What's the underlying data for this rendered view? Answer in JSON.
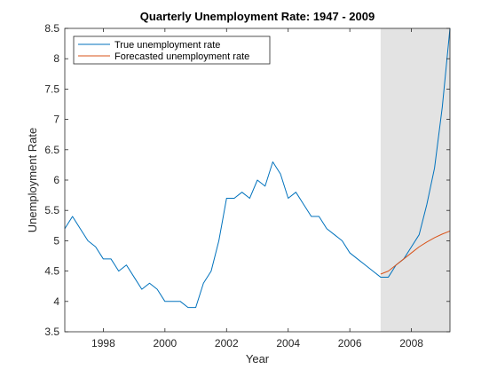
{
  "chart_data": {
    "type": "line",
    "title": "Quarterly Unemployment Rate: 1947 - 2009",
    "xlabel": "Year",
    "ylabel": "Unemployment Rate",
    "xlim": [
      1996.75,
      2009.25
    ],
    "ylim": [
      3.5,
      8.5
    ],
    "xticks": [
      1998,
      2000,
      2002,
      2004,
      2006,
      2008
    ],
    "yticks": [
      3.5,
      4,
      4.5,
      5,
      5.5,
      6,
      6.5,
      7,
      7.5,
      8,
      8.5
    ],
    "grid": false,
    "legend_position": "top-left",
    "shaded_region": {
      "x": [
        2007.0,
        2009.25
      ],
      "color": "#e3e3e3"
    },
    "series": [
      {
        "name": "True unemployment rate",
        "color": "#0072bd",
        "x": [
          1996.75,
          1997.0,
          1997.25,
          1997.5,
          1997.75,
          1998.0,
          1998.25,
          1998.5,
          1998.75,
          1999.0,
          1999.25,
          1999.5,
          1999.75,
          2000.0,
          2000.25,
          2000.5,
          2000.75,
          2001.0,
          2001.25,
          2001.5,
          2001.75,
          2002.0,
          2002.25,
          2002.5,
          2002.75,
          2003.0,
          2003.25,
          2003.5,
          2003.75,
          2004.0,
          2004.25,
          2004.5,
          2004.75,
          2005.0,
          2005.25,
          2005.5,
          2005.75,
          2006.0,
          2006.25,
          2006.5,
          2006.75,
          2007.0,
          2007.25,
          2007.5,
          2007.75,
          2008.0,
          2008.25,
          2008.5,
          2008.75,
          2009.0,
          2009.25
        ],
        "values": [
          5.2,
          5.4,
          5.2,
          5.0,
          4.9,
          4.7,
          4.7,
          4.5,
          4.6,
          4.4,
          4.2,
          4.3,
          4.2,
          4.0,
          4.0,
          4.0,
          3.9,
          3.9,
          4.3,
          4.5,
          5.0,
          5.7,
          5.7,
          5.8,
          5.7,
          6.0,
          5.9,
          6.3,
          6.1,
          5.7,
          5.8,
          5.6,
          5.4,
          5.4,
          5.2,
          5.1,
          5.0,
          4.8,
          4.7,
          4.6,
          4.5,
          4.4,
          4.4,
          4.6,
          4.7,
          4.9,
          5.1,
          5.6,
          6.2,
          7.2,
          8.5
        ]
      },
      {
        "name": "Forecasted unemployment rate",
        "color": "#d95319",
        "x": [
          2007.0,
          2007.25,
          2007.5,
          2007.75,
          2008.0,
          2008.25,
          2008.5,
          2008.75,
          2009.0,
          2009.25
        ],
        "values": [
          4.45,
          4.5,
          4.6,
          4.7,
          4.8,
          4.9,
          4.98,
          5.05,
          5.11,
          5.16
        ]
      }
    ]
  }
}
